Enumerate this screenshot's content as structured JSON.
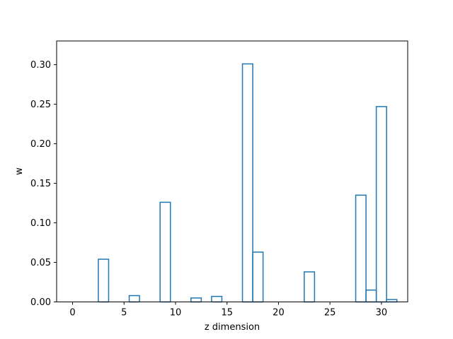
{
  "chart_data": {
    "type": "bar",
    "style": "step-histogram",
    "xlabel": "z dimension",
    "ylabel": "w",
    "xlim": [
      -1.55,
      32.55
    ],
    "ylim": [
      0,
      0.33
    ],
    "xticks": [
      0,
      5,
      10,
      15,
      20,
      25,
      30
    ],
    "xtick_labels": [
      "0",
      "5",
      "10",
      "15",
      "20",
      "25",
      "30"
    ],
    "yticks": [
      0.0,
      0.05,
      0.1,
      0.15,
      0.2,
      0.25,
      0.3
    ],
    "ytick_labels": [
      "0.00",
      "0.05",
      "0.10",
      "0.15",
      "0.20",
      "0.25",
      "0.30"
    ],
    "grid": false,
    "line_color": "#1f77b4",
    "x": [
      0,
      1,
      2,
      3,
      4,
      5,
      6,
      7,
      8,
      9,
      10,
      11,
      12,
      13,
      14,
      15,
      16,
      17,
      18,
      19,
      20,
      21,
      22,
      23,
      24,
      25,
      26,
      27,
      28,
      29,
      30,
      31
    ],
    "values": [
      0,
      0,
      0,
      0.054,
      0,
      0,
      0.008,
      0,
      0,
      0.126,
      0,
      0,
      0.005,
      0,
      0.007,
      0,
      0,
      0.301,
      0.063,
      0,
      0,
      0,
      0,
      0.038,
      0,
      0,
      0,
      0,
      0.135,
      0.015,
      0.247,
      0.003
    ]
  }
}
